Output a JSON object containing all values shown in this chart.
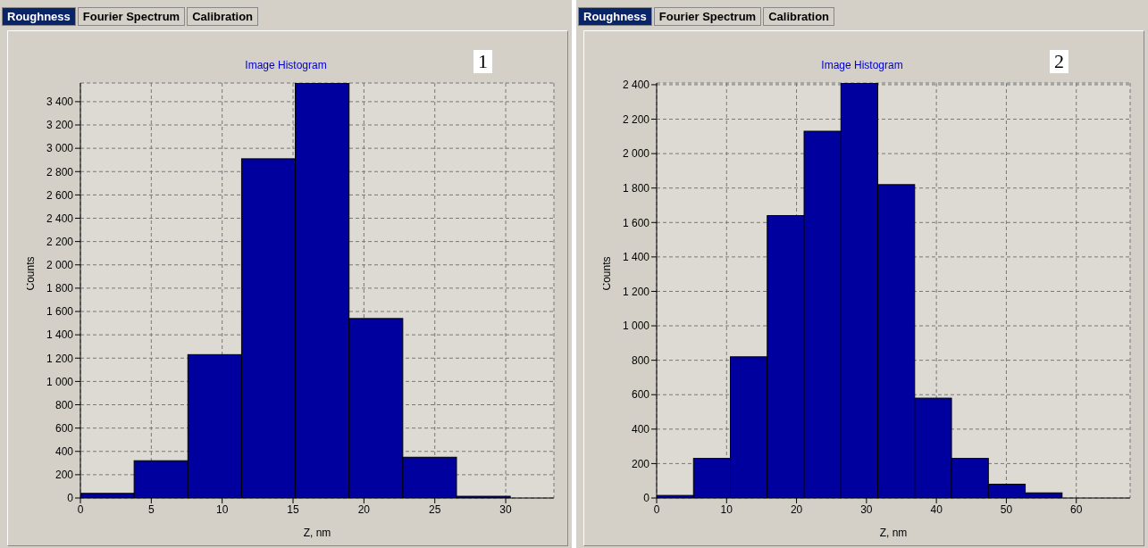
{
  "chart_data": [
    {
      "type": "histogram",
      "title": "Image Histogram",
      "xlabel": "Z, nm",
      "ylabel": "Counts",
      "annotations": [
        "Roughness",
        "Fourier Spectrum",
        "Calibration",
        "1"
      ],
      "color": "#00009e",
      "grid": true,
      "bins": [
        0,
        3.79,
        7.58,
        11.37,
        15.16,
        18.95,
        22.74,
        26.53,
        30.32
      ],
      "values": [
        40,
        320,
        1230,
        2910,
        3560,
        1540,
        350,
        15
      ],
      "xlim": [
        0,
        33.4
      ],
      "xticks": [
        0,
        5,
        10,
        15,
        20,
        25,
        30
      ],
      "ylim": [
        0,
        3560
      ],
      "yticks": [
        0,
        200,
        400,
        600,
        800,
        {
          "value": 1000,
          "label": "1 000"
        },
        {
          "value": 1200,
          "label": "1 200"
        },
        {
          "value": 1400,
          "label": "1 400"
        },
        {
          "value": 1600,
          "label": "1 600"
        },
        {
          "value": 1800,
          "label": "1 800"
        },
        {
          "value": 2000,
          "label": "2 000"
        },
        {
          "value": 2200,
          "label": "2 200"
        },
        {
          "value": 2400,
          "label": "2 400"
        },
        {
          "value": 2600,
          "label": "2 600"
        },
        {
          "value": 2800,
          "label": "2 800"
        },
        {
          "value": 3000,
          "label": "3 000"
        },
        {
          "value": 3200,
          "label": "3 200"
        },
        {
          "value": 3400,
          "label": "3 400"
        }
      ]
    },
    {
      "type": "histogram",
      "title": "Image Histogram",
      "xlabel": "Z, nm",
      "ylabel": "Counts",
      "annotations": [
        "Roughness",
        "Fourier Spectrum",
        "Calibration",
        "2"
      ],
      "color": "#00009e",
      "grid": true,
      "bins": [
        0,
        5.27,
        10.54,
        15.81,
        21.08,
        26.35,
        31.62,
        36.89,
        42.16,
        47.43,
        52.7,
        57.97
      ],
      "values": [
        15,
        230,
        820,
        1640,
        2130,
        2410,
        1820,
        580,
        230,
        80,
        30
      ],
      "xlim": [
        0,
        67.7
      ],
      "xticks": [
        0,
        10,
        20,
        30,
        40,
        50,
        60
      ],
      "ylim": [
        0,
        2410
      ],
      "yticks": [
        0,
        200,
        400,
        600,
        800,
        {
          "value": 1000,
          "label": "1 000"
        },
        {
          "value": 1200,
          "label": "1 200"
        },
        {
          "value": 1400,
          "label": "1 400"
        },
        {
          "value": 1600,
          "label": "1 600"
        },
        {
          "value": 1800,
          "label": "1 800"
        },
        {
          "value": 2000,
          "label": "2 000"
        },
        {
          "value": 2200,
          "label": "2 200"
        },
        {
          "value": 2400,
          "label": "2 400"
        }
      ]
    }
  ]
}
